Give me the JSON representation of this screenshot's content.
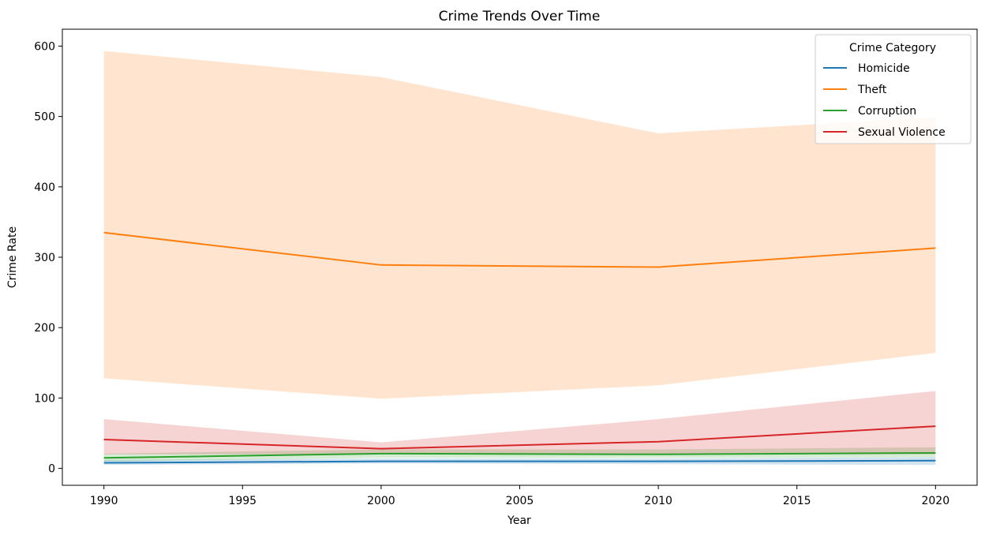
{
  "chart_data": {
    "type": "line",
    "title": "Crime Trends Over Time",
    "xlabel": "Year",
    "ylabel": "Crime Rate",
    "xlim": [
      1988.5,
      2021.5
    ],
    "ylim": [
      -24,
      624
    ],
    "x_ticks": [
      1990,
      1995,
      2000,
      2005,
      2010,
      2015,
      2020
    ],
    "y_ticks": [
      0,
      100,
      200,
      300,
      400,
      500,
      600
    ],
    "x": [
      1990,
      2000,
      2010,
      2020
    ],
    "grid": false,
    "legend": {
      "title": "Crime Category",
      "placement": "top-right"
    },
    "series": [
      {
        "name": "Homicide",
        "color": "#1f77b4",
        "values": [
          8,
          10,
          10,
          11
        ],
        "band_low": [
          5,
          7,
          6,
          5
        ],
        "band_high": [
          12,
          14,
          14,
          16
        ]
      },
      {
        "name": "Theft",
        "color": "#ff7f0e",
        "values": [
          335,
          289,
          286,
          313
        ],
        "band_low": [
          128,
          99,
          118,
          164
        ],
        "band_high": [
          593,
          556,
          476,
          499
        ]
      },
      {
        "name": "Corruption",
        "color": "#2ca02c",
        "values": [
          15,
          21,
          20,
          22
        ],
        "band_low": [
          10,
          15,
          15,
          16
        ],
        "band_high": [
          21,
          27,
          27,
          30
        ]
      },
      {
        "name": "Sexual Violence",
        "color": "#d62728",
        "values": [
          41,
          28,
          38,
          60
        ],
        "band_low": [
          20,
          20,
          20,
          20
        ],
        "band_high": [
          70,
          37,
          70,
          110
        ]
      }
    ]
  }
}
